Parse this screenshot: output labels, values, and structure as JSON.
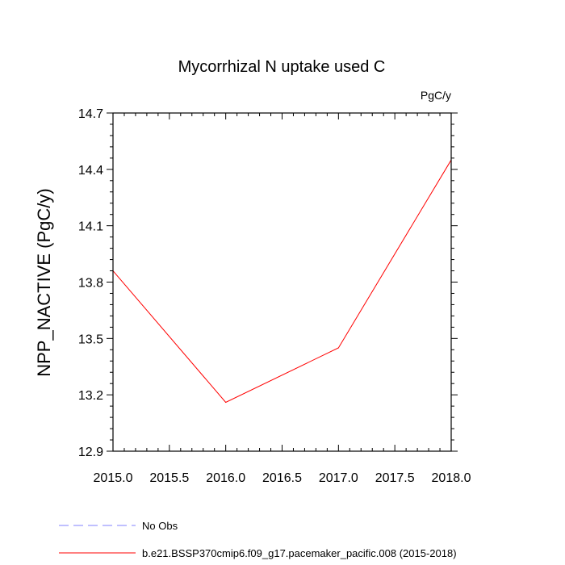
{
  "chart_data": {
    "type": "line",
    "title": "Mycorrhizal N uptake used C",
    "units": "PgC/y",
    "xlabel": "",
    "ylabel": "NPP_NACTIVE  (PgC/y)",
    "xlim": [
      2015.0,
      2018.0
    ],
    "ylim": [
      12.9,
      14.7
    ],
    "x_ticks": [
      "2015.0",
      "2015.5",
      "2016.0",
      "2016.5",
      "2017.0",
      "2017.5",
      "2018.0"
    ],
    "y_ticks": [
      "12.9",
      "13.2",
      "13.5",
      "13.8",
      "14.1",
      "14.4",
      "14.7"
    ],
    "grid": false,
    "legend_position": "bottom",
    "series": [
      {
        "name": "No Obs",
        "color": "#8080ff",
        "style": "dashed",
        "x": [],
        "y": []
      },
      {
        "name": "b.e21.BSSP370cmip6.f09_g17.pacemaker_pacific.008 (2015-2018)",
        "color": "#ff0000",
        "style": "solid",
        "x": [
          2015,
          2016,
          2017,
          2018
        ],
        "y": [
          13.86,
          13.16,
          13.45,
          14.45
        ]
      }
    ]
  }
}
